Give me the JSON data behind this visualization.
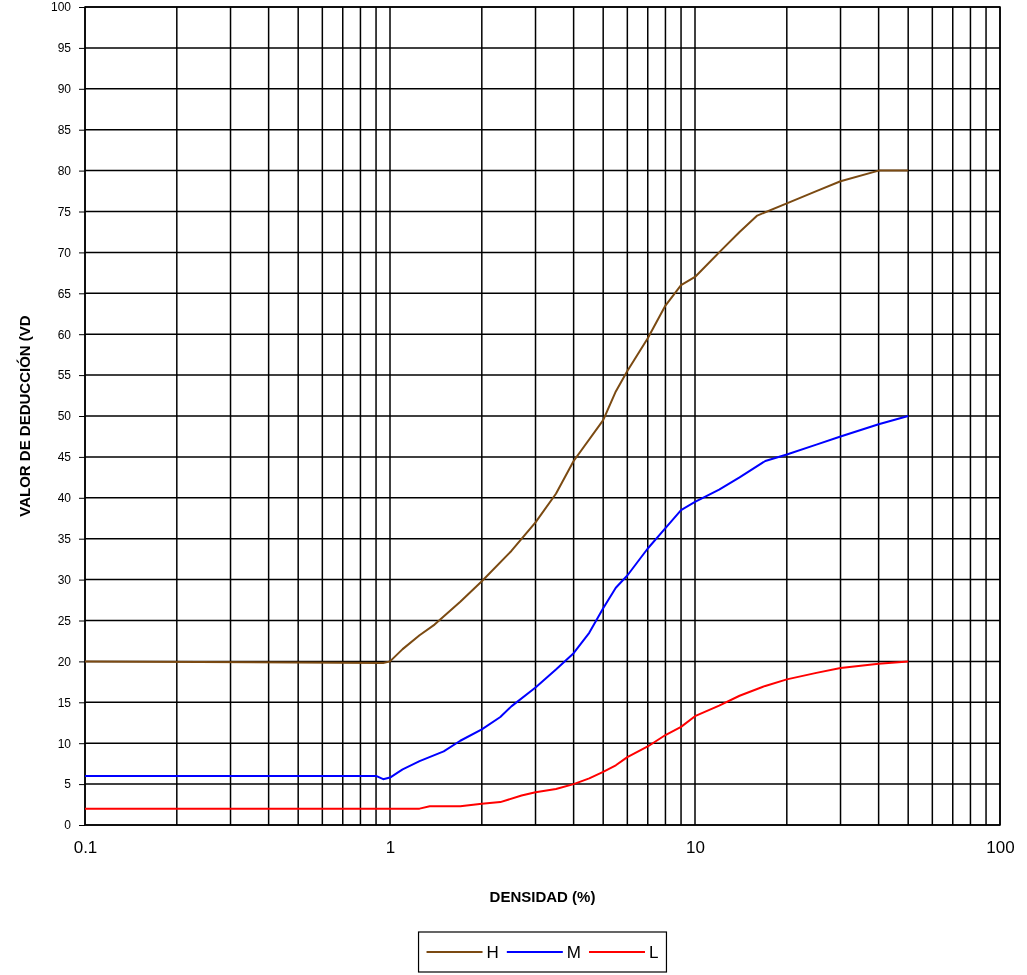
{
  "chart_data": {
    "type": "line",
    "xlabel": "DENSIDAD (%)",
    "ylabel": "VALOR DE DEDUCCIÓN (VD",
    "log": "x",
    "grid": true,
    "legend": "bottom",
    "marker": "none",
    "line_style": "solid",
    "xlim": [
      0.1,
      100
    ],
    "ylim": [
      0,
      100
    ],
    "xticks": [
      0.1,
      {
        "value": 0.2,
        "label": null
      },
      {
        "value": 0.3,
        "label": null
      },
      {
        "value": 0.4,
        "label": null
      },
      {
        "value": 0.5,
        "label": null
      },
      {
        "value": 0.6,
        "label": null
      },
      {
        "value": 0.7,
        "label": null
      },
      {
        "value": 0.8,
        "label": null
      },
      {
        "value": 0.9,
        "label": null
      },
      1,
      {
        "value": 2,
        "label": null
      },
      {
        "value": 3,
        "label": null
      },
      {
        "value": 4,
        "label": null
      },
      {
        "value": 5,
        "label": null
      },
      {
        "value": 6,
        "label": null
      },
      {
        "value": 7,
        "label": null
      },
      {
        "value": 8,
        "label": null
      },
      {
        "value": 9,
        "label": null
      },
      10,
      {
        "value": 20,
        "label": null
      },
      {
        "value": 30,
        "label": null
      },
      {
        "value": 40,
        "label": null
      },
      {
        "value": 50,
        "label": null
      },
      {
        "value": 60,
        "label": null
      },
      {
        "value": 70,
        "label": null
      },
      {
        "value": 80,
        "label": null
      },
      {
        "value": 90,
        "label": null
      },
      100
    ],
    "yticks": [
      0,
      5,
      10,
      15,
      20,
      25,
      30,
      35,
      40,
      45,
      50,
      55,
      60,
      65,
      70,
      75,
      80,
      85,
      90,
      95,
      100
    ],
    "series": [
      {
        "name": "H",
        "color": "#7b4a12",
        "x": [
          0.1,
          0.95,
          1,
          1.1,
          1.25,
          1.4,
          1.7,
          2,
          2.5,
          3,
          3.5,
          4,
          5,
          5.5,
          6,
          7,
          8,
          9,
          10,
          12,
          14,
          16,
          20,
          25,
          30,
          40,
          50
        ],
        "values": [
          20,
          19.8,
          20,
          21.5,
          23.2,
          24.5,
          27.3,
          29.8,
          33.5,
          37,
          40.5,
          44.5,
          49.5,
          53,
          55.5,
          59.5,
          63.5,
          66,
          67,
          70,
          72.5,
          74.5,
          76,
          77.5,
          78.7,
          80,
          80
        ]
      },
      {
        "name": "M",
        "color": "#0000ff",
        "x": [
          0.1,
          0.9,
          0.95,
          1,
          1.1,
          1.25,
          1.5,
          1.7,
          2,
          2.3,
          2.5,
          3,
          3.5,
          4,
          4.5,
          5,
          5.5,
          6,
          7,
          8,
          9,
          10,
          12,
          14,
          17,
          20,
          25,
          30,
          40,
          50
        ],
        "values": [
          6,
          6,
          5.6,
          5.8,
          6.8,
          7.8,
          9,
          10.3,
          11.7,
          13.2,
          14.5,
          16.8,
          19,
          21,
          23.5,
          26.5,
          29,
          30.5,
          33.8,
          36.3,
          38.5,
          39.5,
          41,
          42.5,
          44.5,
          45.3,
          46.5,
          47.5,
          49,
          50
        ]
      },
      {
        "name": "L",
        "color": "#ff0000",
        "x": [
          0.1,
          1,
          1.25,
          1.35,
          1.7,
          2,
          2.3,
          2.7,
          3,
          3.5,
          4,
          4.5,
          5,
          5.5,
          6,
          7,
          8,
          9,
          10,
          12,
          14,
          17,
          20,
          25,
          30,
          40,
          50
        ],
        "values": [
          2,
          2,
          2,
          2.3,
          2.3,
          2.6,
          2.8,
          3.6,
          4,
          4.4,
          5,
          5.7,
          6.5,
          7.3,
          8.3,
          9.6,
          11,
          12,
          13.3,
          14.6,
          15.8,
          17,
          17.8,
          18.6,
          19.2,
          19.7,
          20
        ]
      }
    ]
  }
}
